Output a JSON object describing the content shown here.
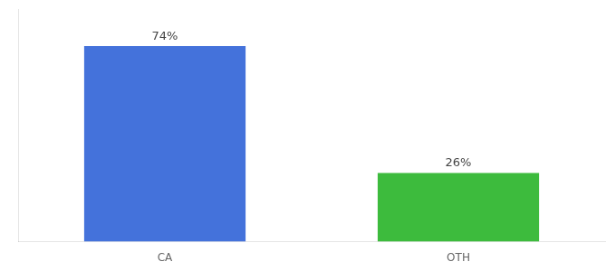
{
  "chart_data": {
    "type": "bar",
    "categories": [
      "CA",
      "OTH"
    ],
    "values": [
      74,
      26
    ],
    "colors": [
      "#4472db",
      "#3dbb3d"
    ],
    "ylim": [
      0,
      88
    ],
    "data_labels": true,
    "value_labels": [
      "74%",
      "26%"
    ],
    "tick_labels": "x",
    "grid": false
  }
}
